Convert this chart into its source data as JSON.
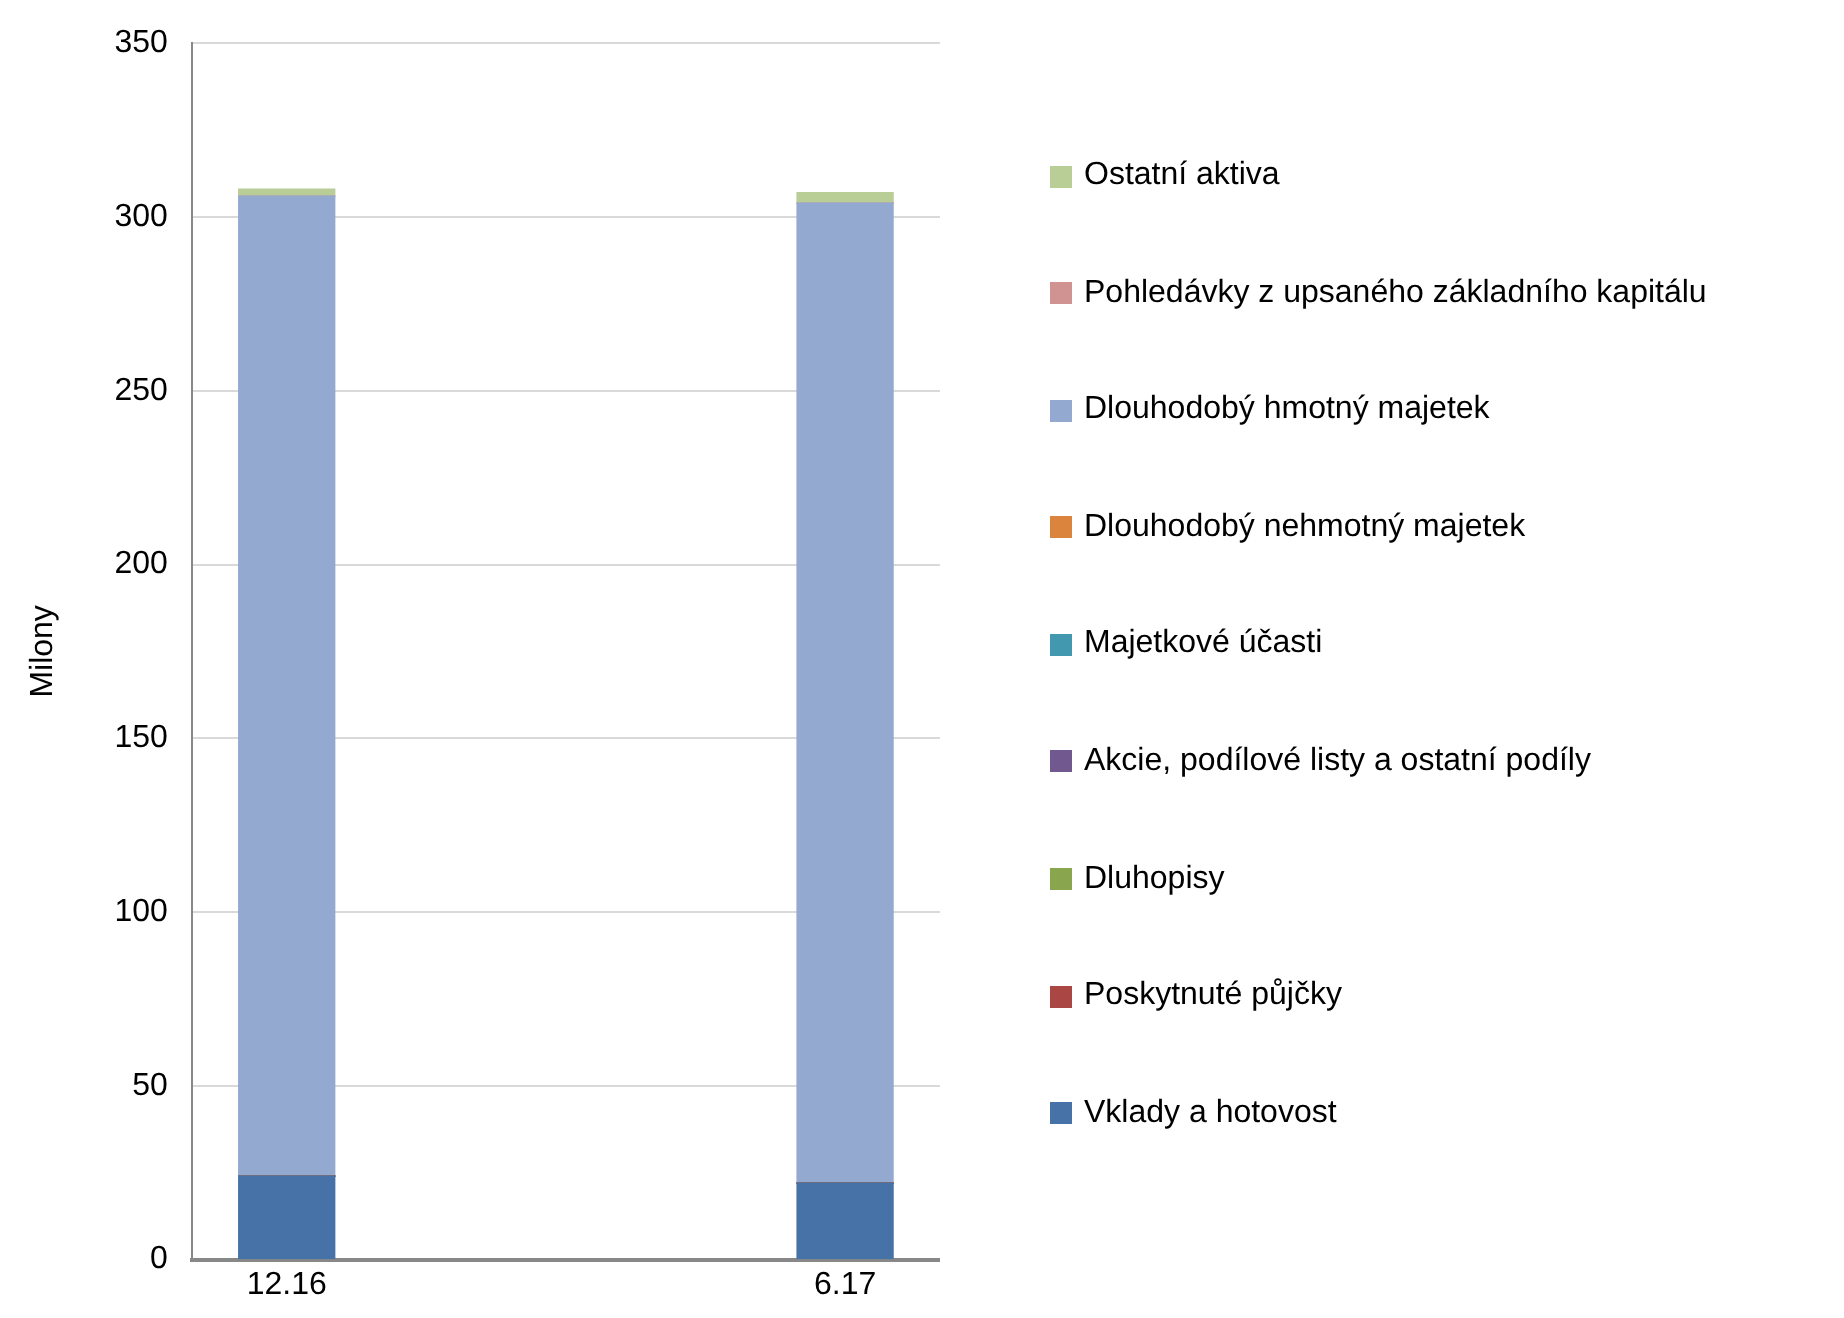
{
  "chart_data": {
    "type": "bar",
    "stacked": true,
    "ylabel": "Milony",
    "categories": [
      "12.16",
      "6.17"
    ],
    "series": [
      {
        "name": "Vklady a hotovost",
        "color": "#4672a7",
        "values": [
          24,
          22
        ]
      },
      {
        "name": "Poskytnuté půjčky",
        "color": "#aa4643",
        "values": [
          0,
          0
        ]
      },
      {
        "name": "Dluhopisy",
        "color": "#89a54e",
        "values": [
          0,
          0
        ]
      },
      {
        "name": "Akcie, podílové listy a ostatní podíly",
        "color": "#71588f",
        "values": [
          0,
          0
        ]
      },
      {
        "name": "Majetkové účasti",
        "color": "#4198af",
        "values": [
          0,
          0
        ]
      },
      {
        "name": "Dlouhodobý nehmotný majetek",
        "color": "#db843d",
        "values": [
          0,
          0
        ]
      },
      {
        "name": "Dlouhodobý hmotný majetek",
        "color": "#93a9cf",
        "values": [
          282,
          282
        ]
      },
      {
        "name": "Pohledávky z upsaného základního kapitálu",
        "color": "#d19392",
        "values": [
          0,
          0
        ]
      },
      {
        "name": "Ostatní aktiva",
        "color": "#b9cd96",
        "values": [
          2,
          3
        ]
      }
    ],
    "ylim": [
      0,
      350
    ],
    "yticks": [
      0,
      50,
      100,
      150,
      200,
      250,
      300,
      350
    ],
    "grid": "y",
    "legend": "right"
  }
}
